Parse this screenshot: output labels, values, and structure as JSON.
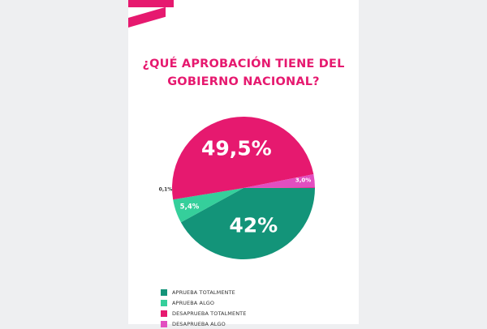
{
  "chart_data": {
    "type": "pie",
    "title": "¿QUÉ APROBACIÓN TIENE DEL GOBIERNO NACIONAL?",
    "title_lines": [
      "¿QUÉ APROBACIÓN TIENE DEL",
      "GOBIERNO NACIONAL?"
    ],
    "slices": [
      {
        "label": "APRUEBA TOTALMENTE",
        "value": 42,
        "display": "42%",
        "color": "#139479"
      },
      {
        "label": "APRUEBA ALGO",
        "value": 5.4,
        "display": "5,4%",
        "color": "#35cf9b"
      },
      {
        "label": "DESAPRUEBA TOTALMENTE",
        "value": 49.5,
        "display": "49,5%",
        "color": "#e6196f"
      },
      {
        "label": "DESAPRUEBA ALGO",
        "value": 3.0,
        "display": "3,0%",
        "color": "#e24ec0"
      },
      {
        "label": "",
        "value": 0.1,
        "display": "0,1%",
        "color": "#e6196f"
      }
    ],
    "legend_position": "bottom-left"
  },
  "colors": {
    "accent": "#e6196f",
    "background": "#eeeff1",
    "page": "#ffffff"
  }
}
